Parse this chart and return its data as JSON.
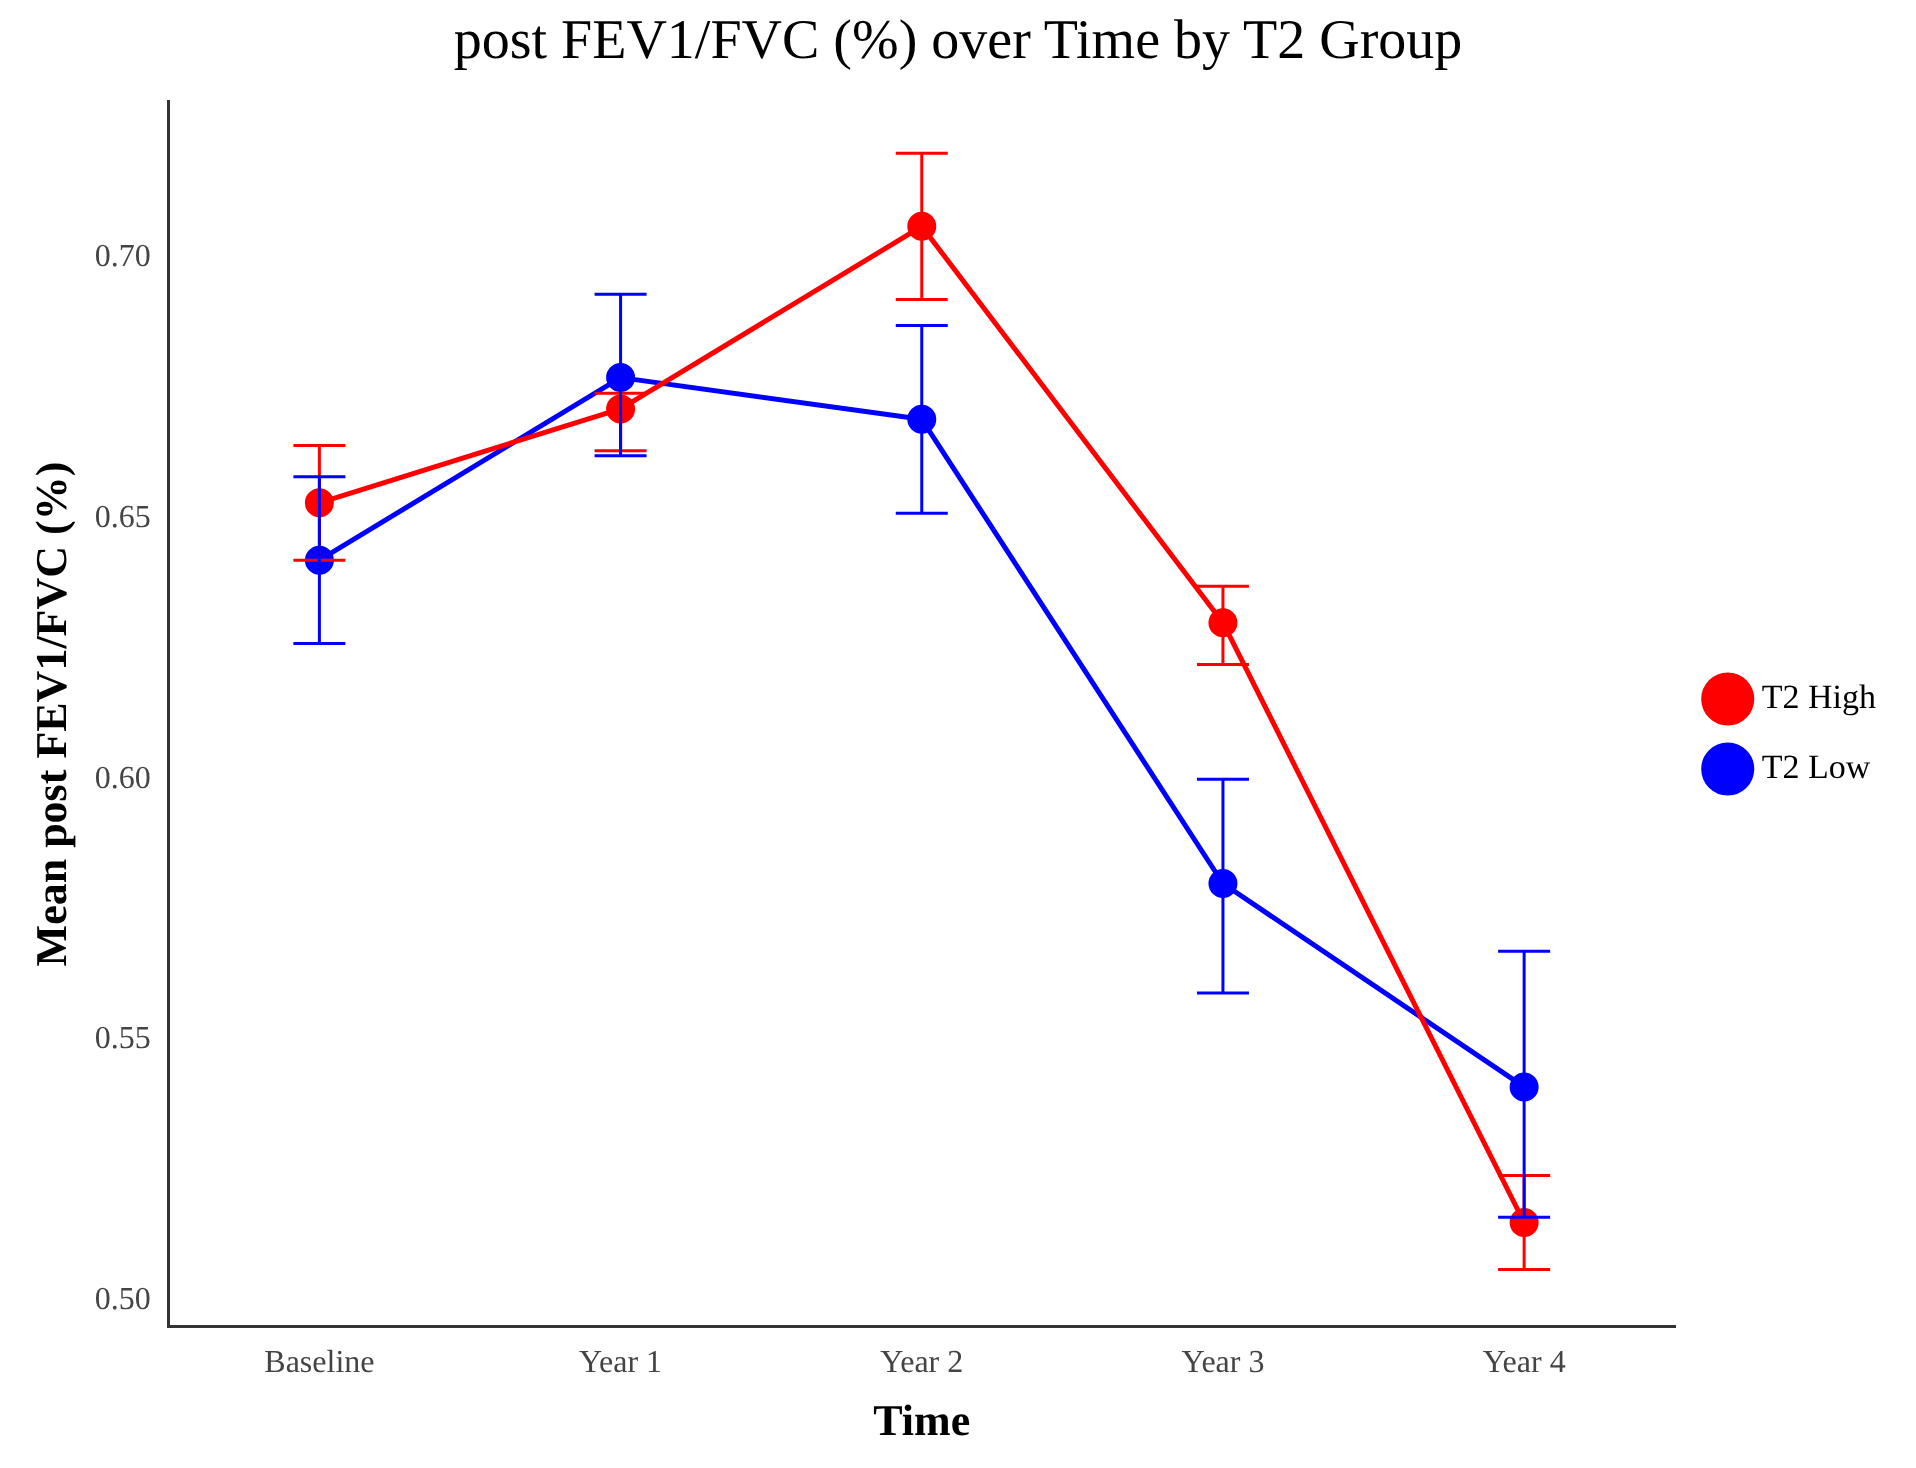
{
  "chart_data": {
    "type": "line",
    "title": "post FEV1/FVC (%) over Time by T2 Group",
    "xlabel": "Time",
    "ylabel": "Mean post FEV1/FVC (%)",
    "categories": [
      "Baseline",
      "Year 1",
      "Year 2",
      "Year 3",
      "Year 4"
    ],
    "series": [
      {
        "name": "T2 High",
        "color": "#ff0000",
        "values": [
          0.653,
          0.671,
          0.706,
          0.63,
          0.515
        ],
        "errors": [
          [
            0.642,
            0.664
          ],
          [
            0.663,
            0.674
          ],
          [
            0.692,
            0.72
          ],
          [
            0.622,
            0.637
          ],
          [
            0.506,
            0.524
          ]
        ]
      },
      {
        "name": "T2 Low",
        "color": "#0000ff",
        "values": [
          0.642,
          0.677,
          0.669,
          0.58,
          0.541
        ],
        "errors": [
          [
            0.626,
            0.658
          ],
          [
            0.662,
            0.693
          ],
          [
            0.651,
            0.687
          ],
          [
            0.559,
            0.6
          ],
          [
            0.516,
            0.567
          ]
        ]
      }
    ],
    "ylim": [
      0.495,
      0.73
    ],
    "yticks": [
      {
        "value": 0.5,
        "label": "0.50"
      },
      {
        "value": 0.55,
        "label": "0.55"
      },
      {
        "value": 0.6,
        "label": "0.60"
      },
      {
        "value": 0.65,
        "label": "0.65"
      },
      {
        "value": 0.7,
        "label": "0.70"
      }
    ],
    "grid": false,
    "legend": "right",
    "marker": "circle",
    "line_style": "solid"
  }
}
